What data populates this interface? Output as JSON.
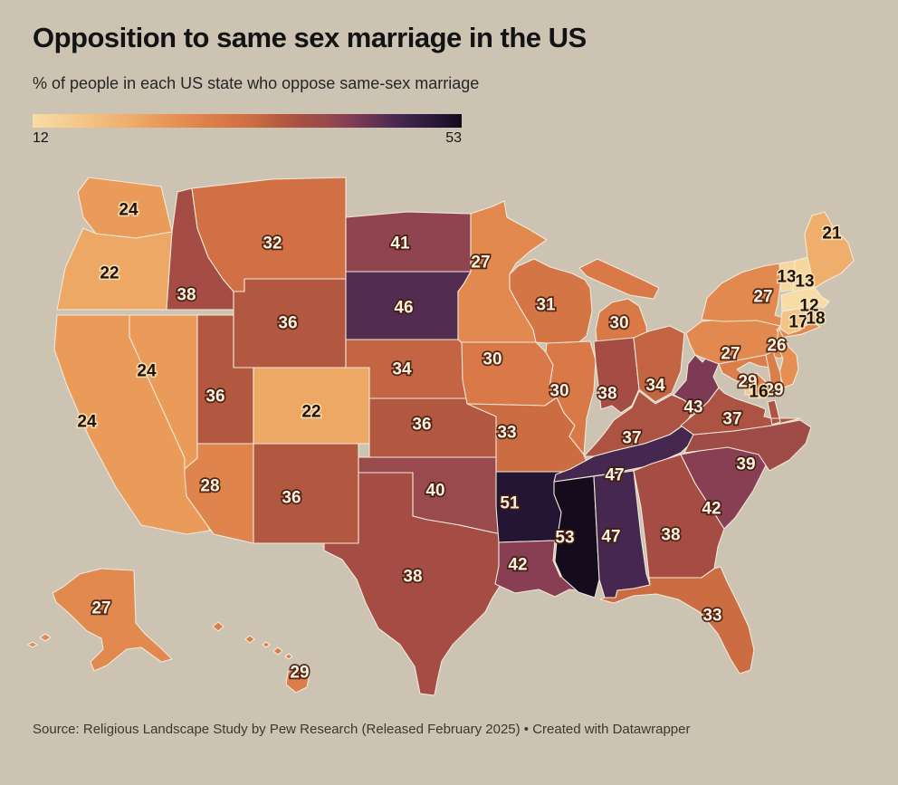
{
  "header": {
    "title": "Opposition to same sex marriage in the US",
    "subtitle": "% of people in each US state who oppose same-sex marriage"
  },
  "legend": {
    "min_label": "12",
    "max_label": "53"
  },
  "footer": {
    "text": "Source: Religious Landscape Study by Pew Research (Released February 2025) • Created with Datawrapper"
  },
  "colors": {
    "background": "#ccc3b3",
    "state_border": "#f2e9d8",
    "stops": [
      {
        "value": 12,
        "color": "#f8dca6"
      },
      {
        "value": 16,
        "color": "#f4c98c"
      },
      {
        "value": 21,
        "color": "#efae6c"
      },
      {
        "value": 24,
        "color": "#ea9b59"
      },
      {
        "value": 27,
        "color": "#e28950"
      },
      {
        "value": 30,
        "color": "#d87947"
      },
      {
        "value": 33,
        "color": "#cc6c43"
      },
      {
        "value": 36,
        "color": "#b25841"
      },
      {
        "value": 38,
        "color": "#a54d45"
      },
      {
        "value": 40,
        "color": "#984a4c"
      },
      {
        "value": 42,
        "color": "#883e53"
      },
      {
        "value": 44,
        "color": "#6f3554"
      },
      {
        "value": 47,
        "color": "#452750"
      },
      {
        "value": 51,
        "color": "#251534"
      },
      {
        "value": 53,
        "color": "#140b1c"
      }
    ]
  },
  "chart_data": {
    "type": "choropleth",
    "geography": "US states (incl. DC, AK, HI)",
    "title": "Opposition to same sex marriage in the US",
    "subtitle": "% of people in each US state who oppose same-sex marriage",
    "unit": "% oppose",
    "scale": {
      "min": 12,
      "max": 53
    },
    "values": [
      {
        "state": "Washington",
        "abbr": "WA",
        "value": 24
      },
      {
        "state": "Oregon",
        "abbr": "OR",
        "value": 22
      },
      {
        "state": "California",
        "abbr": "CA",
        "value": 24
      },
      {
        "state": "Nevada",
        "abbr": "NV",
        "value": 24
      },
      {
        "state": "Idaho",
        "abbr": "ID",
        "value": 38
      },
      {
        "state": "Montana",
        "abbr": "MT",
        "value": 32
      },
      {
        "state": "Wyoming",
        "abbr": "WY",
        "value": 36
      },
      {
        "state": "Utah",
        "abbr": "UT",
        "value": 36
      },
      {
        "state": "Colorado",
        "abbr": "CO",
        "value": 22
      },
      {
        "state": "Arizona",
        "abbr": "AZ",
        "value": 28
      },
      {
        "state": "New Mexico",
        "abbr": "NM",
        "value": 36
      },
      {
        "state": "North Dakota",
        "abbr": "ND",
        "value": 41
      },
      {
        "state": "South Dakota",
        "abbr": "SD",
        "value": 46
      },
      {
        "state": "Nebraska",
        "abbr": "NE",
        "value": 34
      },
      {
        "state": "Kansas",
        "abbr": "KS",
        "value": 36
      },
      {
        "state": "Oklahoma",
        "abbr": "OK",
        "value": 40
      },
      {
        "state": "Texas",
        "abbr": "TX",
        "value": 38
      },
      {
        "state": "Minnesota",
        "abbr": "MN",
        "value": 27
      },
      {
        "state": "Iowa",
        "abbr": "IA",
        "value": 30
      },
      {
        "state": "Missouri",
        "abbr": "MO",
        "value": 33
      },
      {
        "state": "Arkansas",
        "abbr": "AR",
        "value": 51
      },
      {
        "state": "Louisiana",
        "abbr": "LA",
        "value": 42
      },
      {
        "state": "Wisconsin",
        "abbr": "WI",
        "value": 31
      },
      {
        "state": "Illinois",
        "abbr": "IL",
        "value": 30
      },
      {
        "state": "Mississippi",
        "abbr": "MS",
        "value": 53
      },
      {
        "state": "Michigan",
        "abbr": "MI",
        "value": 30
      },
      {
        "state": "Indiana",
        "abbr": "IN",
        "value": 38
      },
      {
        "state": "Ohio",
        "abbr": "OH",
        "value": 34
      },
      {
        "state": "Kentucky",
        "abbr": "KY",
        "value": 37
      },
      {
        "state": "Tennessee",
        "abbr": "TN",
        "value": 47
      },
      {
        "state": "Alabama",
        "abbr": "AL",
        "value": 47
      },
      {
        "state": "Georgia",
        "abbr": "GA",
        "value": 38
      },
      {
        "state": "Florida",
        "abbr": "FL",
        "value": 33
      },
      {
        "state": "South Carolina",
        "abbr": "SC",
        "value": 42
      },
      {
        "state": "North Carolina",
        "abbr": "NC",
        "value": 39
      },
      {
        "state": "Virginia",
        "abbr": "VA",
        "value": 37
      },
      {
        "state": "West Virginia",
        "abbr": "WV",
        "value": 43
      },
      {
        "state": "Pennsylvania",
        "abbr": "PA",
        "value": 27
      },
      {
        "state": "New York",
        "abbr": "NY",
        "value": 27
      },
      {
        "state": "New Jersey",
        "abbr": "NJ",
        "value": 26
      },
      {
        "state": "Maryland",
        "abbr": "MD",
        "value": 29
      },
      {
        "state": "Delaware",
        "abbr": "DE",
        "value": 29
      },
      {
        "state": "District of Columbia",
        "abbr": "DC",
        "value": 16
      },
      {
        "state": "Vermont",
        "abbr": "VT",
        "value": 13
      },
      {
        "state": "New Hampshire",
        "abbr": "NH",
        "value": 13
      },
      {
        "state": "Massachusetts",
        "abbr": "MA",
        "value": 12
      },
      {
        "state": "Connecticut",
        "abbr": "CT",
        "value": 17
      },
      {
        "state": "Rhode Island",
        "abbr": "RI",
        "value": 18
      },
      {
        "state": "Maine",
        "abbr": "ME",
        "value": 21
      },
      {
        "state": "Alaska",
        "abbr": "AK",
        "value": 27
      },
      {
        "state": "Hawaii",
        "abbr": "HI",
        "value": 29
      }
    ]
  }
}
